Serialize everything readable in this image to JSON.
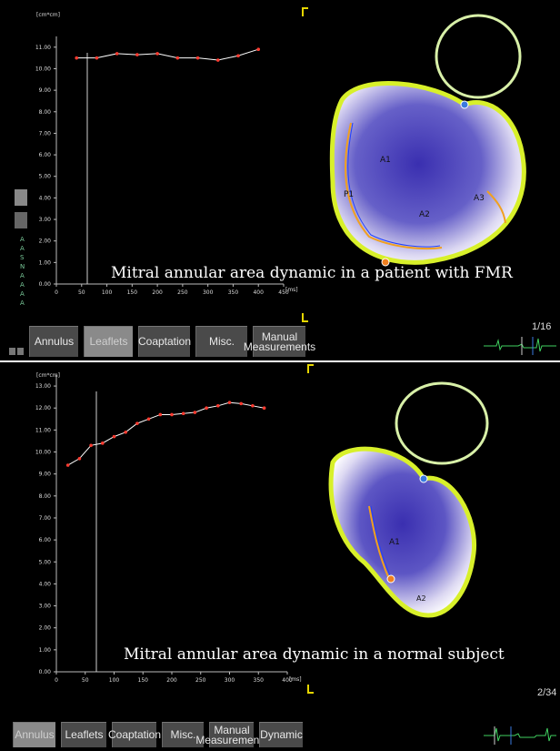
{
  "top": {
    "y_unit": "[cm*cm]",
    "x_unit": "[ms]",
    "y_ticks": [
      "11.00",
      "10.00",
      "9.00",
      "8.00",
      "7.00",
      "6.00",
      "5.00",
      "4.00",
      "3.00",
      "2.00",
      "1.00",
      "0.00"
    ],
    "x_ticks": [
      "0",
      "50",
      "100",
      "150",
      "200",
      "250",
      "300",
      "350",
      "400",
      "450"
    ],
    "caption": "Mitral annular area dynamic in a patient with FMR",
    "counter": "1/16",
    "tabs": [
      {
        "label": "Annulus",
        "active": false
      },
      {
        "label": "Leaflets",
        "active": true
      },
      {
        "label": "Coaptation",
        "active": false
      },
      {
        "label": "Misc.",
        "active": false
      },
      {
        "label": "Manual\nMeasurements",
        "active": false
      }
    ],
    "side_letters": [
      "A",
      "A",
      "S",
      "N",
      "A",
      "A",
      "A",
      "A"
    ],
    "region_labels": [
      "A1",
      "P1",
      "A2",
      "A3"
    ]
  },
  "bottom": {
    "y_unit": "[cm*cm]",
    "x_unit": "[ms]",
    "y_ticks": [
      "13.00",
      "12.00",
      "11.00",
      "10.00",
      "9.00",
      "8.00",
      "7.00",
      "6.00",
      "5.00",
      "4.00",
      "3.00",
      "2.00",
      "1.00",
      "0.00"
    ],
    "x_ticks": [
      "0",
      "50",
      "100",
      "150",
      "200",
      "250",
      "300",
      "350",
      "400"
    ],
    "caption": "Mitral annular area dynamic in a normal subject",
    "counter": "2/34",
    "tabs": [
      {
        "label": "Annulus",
        "active": true
      },
      {
        "label": "Leaflets",
        "active": false
      },
      {
        "label": "Coaptation",
        "active": false
      },
      {
        "label": "Misc.",
        "active": false
      },
      {
        "label": "Manual\nMeasurements",
        "active": false
      },
      {
        "label": "Dynamic",
        "active": false
      }
    ],
    "region_labels": [
      "A1",
      "A2"
    ]
  },
  "chart_data": [
    {
      "type": "line",
      "title": "",
      "xlabel": "[ms]",
      "ylabel": "[cm*cm]",
      "xlim": [
        0,
        450
      ],
      "ylim": [
        0,
        11.5
      ],
      "grid": false,
      "series": [
        {
          "x": [
            40,
            80,
            120,
            160,
            200,
            240,
            280,
            320,
            360,
            400
          ],
          "y": [
            10.5,
            10.5,
            10.7,
            10.65,
            10.7,
            10.5,
            10.5,
            10.4,
            10.6,
            10.9
          ]
        }
      ],
      "color": "#ff3b30"
    },
    {
      "type": "line",
      "title": "",
      "xlabel": "[ms]",
      "ylabel": "[cm*cm]",
      "xlim": [
        0,
        400
      ],
      "ylim": [
        0,
        13.5
      ],
      "grid": false,
      "series": [
        {
          "x": [
            20,
            40,
            60,
            80,
            100,
            120,
            140,
            160,
            180,
            200,
            220,
            240,
            260,
            280,
            300,
            320,
            340,
            360
          ],
          "y": [
            9.4,
            9.7,
            10.3,
            10.4,
            10.7,
            10.9,
            11.3,
            11.5,
            11.7,
            11.7,
            11.75,
            11.8,
            12.0,
            12.1,
            12.25,
            12.2,
            12.1,
            12.0
          ]
        }
      ],
      "color": "#ff3b30"
    }
  ]
}
